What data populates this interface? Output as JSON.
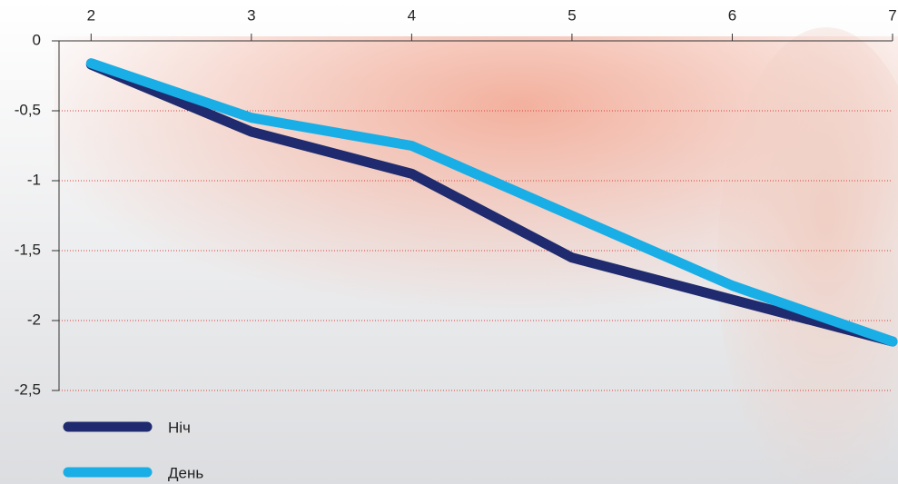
{
  "chart_data": {
    "type": "line",
    "x": [
      2,
      3,
      4,
      5,
      6,
      7
    ],
    "series": [
      {
        "name": "Ніч",
        "color": "#1f2b6e",
        "values": [
          -0.17,
          -0.65,
          -0.95,
          -1.55,
          -1.85,
          -2.15
        ]
      },
      {
        "name": "День",
        "color": "#1aaee6",
        "values": [
          -0.16,
          -0.55,
          -0.75,
          -1.25,
          -1.75,
          -2.15
        ]
      }
    ],
    "xlim": [
      1.8,
      7
    ],
    "xticks": [
      2,
      3,
      4,
      5,
      6,
      7
    ],
    "ylim": [
      -2.5,
      0
    ],
    "yticks": [
      0,
      {
        "value": -0.5,
        "label": "-0,5"
      },
      -1,
      {
        "value": -1.5,
        "label": "-1,5"
      },
      -2,
      {
        "value": -2.5,
        "label": "-2,5"
      }
    ],
    "grid": true,
    "grid_color": "#d9403a",
    "legend": "bottom-left"
  }
}
